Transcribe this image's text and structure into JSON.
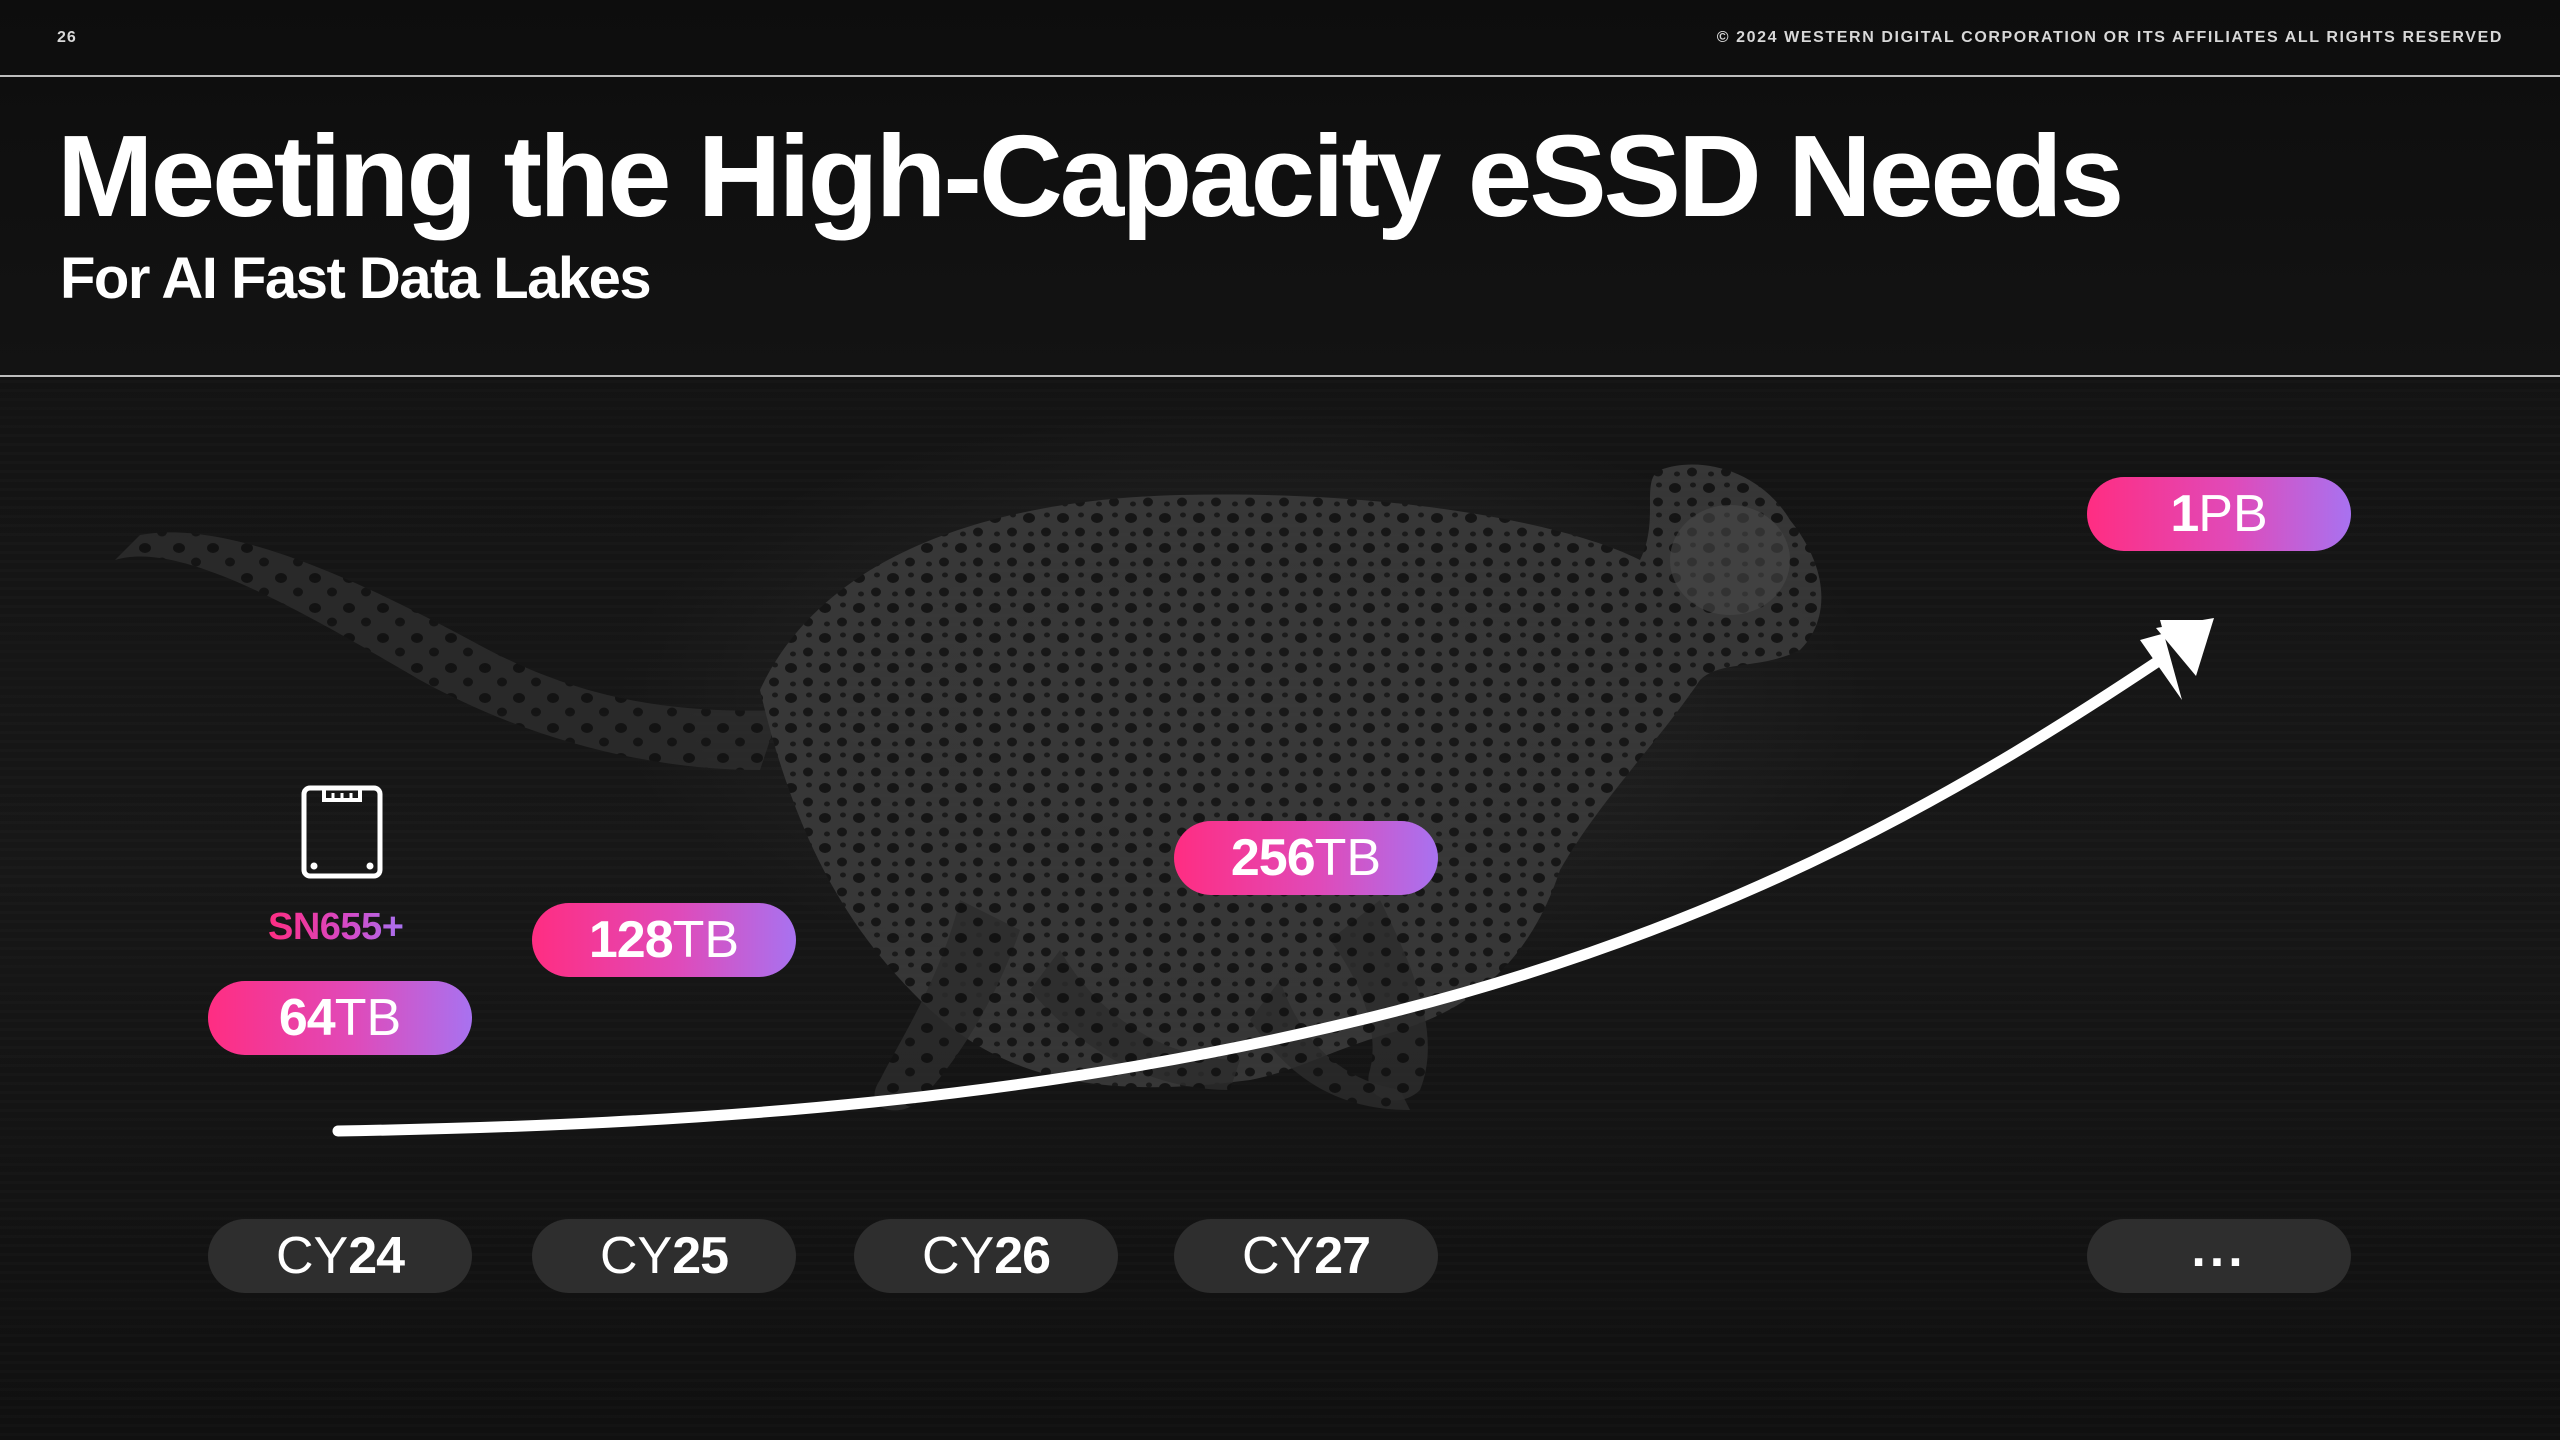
{
  "header": {
    "page_number": "26",
    "copyright": "© 2024 WESTERN DIGITAL CORPORATION OR ITS AFFILIATES ALL RIGHTS RESERVED"
  },
  "title": "Meeting the High-Capacity eSSD Needs",
  "subtitle": "For AI Fast Data Lakes",
  "product": {
    "label": "SN655+",
    "icon": "ssd-drive-icon"
  },
  "capacities": [
    {
      "value": "64",
      "unit": "TB"
    },
    {
      "value": "128",
      "unit": "TB"
    },
    {
      "value": "256",
      "unit": "TB"
    },
    {
      "value": "1",
      "unit": "PB"
    }
  ],
  "years": [
    {
      "prefix": "CY",
      "value": "24"
    },
    {
      "prefix": "CY",
      "value": "25"
    },
    {
      "prefix": "CY",
      "value": "26"
    },
    {
      "prefix": "CY",
      "value": "27"
    }
  ],
  "years_more": "...",
  "colors": {
    "background": "#0b0b0b",
    "pill_gradient_start": "#ff2d82",
    "pill_gradient_end": "#a872f0",
    "year_pill": "#2e2e2e",
    "text": "#ffffff"
  }
}
